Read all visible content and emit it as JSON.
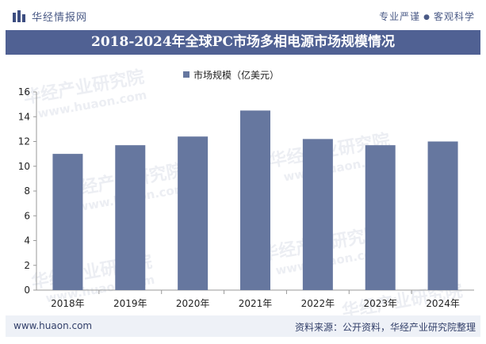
{
  "header": {
    "brand": "华经情报网",
    "slogan_left": "专业严谨",
    "slogan_dot": "●",
    "slogan_right": "客观科学"
  },
  "title": "2018-2024年全球PC市场多相电源市场规模情况",
  "watermark": {
    "cn": "华经产业研究院",
    "en": "www.huaon.com"
  },
  "footer": {
    "url": "www.huaon.com",
    "source": "资料来源：公开资料，华经产业研究院整理"
  },
  "colors": {
    "bar": "#66779f",
    "title_bg": "#506193",
    "footer_bg": "#eef1f7"
  },
  "chart_data": {
    "type": "bar",
    "categories": [
      "2018年",
      "2019年",
      "2020年",
      "2021年",
      "2022年",
      "2023年",
      "2024年"
    ],
    "series": [
      {
        "name": "市场规模（亿美元）",
        "values": [
          11.0,
          11.7,
          12.4,
          14.5,
          12.2,
          11.7,
          12.0
        ]
      }
    ],
    "ylim": [
      0,
      16
    ],
    "yticks": [
      0,
      2,
      4,
      6,
      8,
      10,
      12,
      14,
      16
    ],
    "grid": false,
    "legend": "top-center"
  }
}
